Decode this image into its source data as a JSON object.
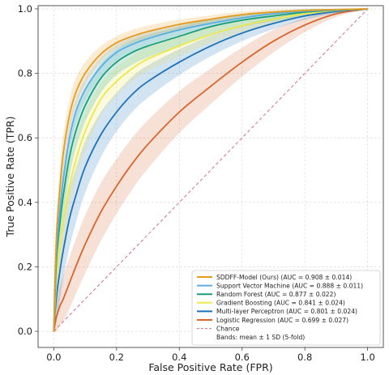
{
  "chart_data": {
    "type": "line",
    "xlabel": "False Positive Rate (FPR)",
    "ylabel": "True Positive Rate (TPR)",
    "xlim": [
      -0.05,
      1.05
    ],
    "ylim": [
      -0.05,
      1.01
    ],
    "xticks": [
      "0.0",
      "0.2",
      "0.4",
      "0.6",
      "0.8",
      "1.0"
    ],
    "yticks": [
      "0.0",
      "0.2",
      "0.4",
      "0.6",
      "0.8",
      "1.0"
    ],
    "grid": true,
    "legend_position": "bottom-right",
    "series": [
      {
        "name": "SDDFF-Model (Ours)",
        "auc_label": "(AUC = 0.908 ± 0.014)",
        "color": "#e69b1f",
        "x": [
          0,
          0.005,
          0.01,
          0.02,
          0.03,
          0.05,
          0.07,
          0.1,
          0.15,
          0.2,
          0.25,
          0.3,
          0.4,
          0.5,
          0.6,
          0.7,
          0.8,
          0.9,
          1.0
        ],
        "y": [
          0,
          0.2,
          0.32,
          0.45,
          0.55,
          0.67,
          0.74,
          0.8,
          0.86,
          0.895,
          0.915,
          0.93,
          0.952,
          0.968,
          0.982,
          0.99,
          0.995,
          0.998,
          1.0
        ],
        "band": [
          0.02,
          0.06,
          0.06,
          0.06,
          0.06,
          0.05,
          0.045,
          0.035,
          0.025,
          0.02,
          0.02,
          0.018,
          0.015,
          0.012,
          0.01,
          0.008,
          0.005,
          0.003,
          0
        ]
      },
      {
        "name": "Support Vector Machine",
        "auc_label": "(AUC = 0.888 ± 0.011)",
        "color": "#5aaee0",
        "x": [
          0,
          0.005,
          0.01,
          0.02,
          0.03,
          0.05,
          0.07,
          0.1,
          0.15,
          0.2,
          0.25,
          0.3,
          0.4,
          0.5,
          0.6,
          0.7,
          0.8,
          0.9,
          1.0
        ],
        "y": [
          0,
          0.16,
          0.27,
          0.38,
          0.47,
          0.6,
          0.68,
          0.75,
          0.82,
          0.865,
          0.89,
          0.908,
          0.935,
          0.955,
          0.972,
          0.985,
          0.993,
          0.997,
          1.0
        ],
        "band": [
          0.02,
          0.05,
          0.05,
          0.05,
          0.05,
          0.045,
          0.04,
          0.035,
          0.03,
          0.025,
          0.022,
          0.02,
          0.016,
          0.013,
          0.01,
          0.008,
          0.005,
          0.003,
          0
        ]
      },
      {
        "name": "Random Forest",
        "auc_label": "(AUC = 0.877 ± 0.022)",
        "color": "#1a9e77",
        "x": [
          0,
          0.005,
          0.01,
          0.02,
          0.03,
          0.05,
          0.07,
          0.1,
          0.15,
          0.2,
          0.25,
          0.3,
          0.4,
          0.5,
          0.6,
          0.7,
          0.8,
          0.9,
          1.0
        ],
        "y": [
          0,
          0.14,
          0.24,
          0.34,
          0.42,
          0.54,
          0.62,
          0.7,
          0.785,
          0.835,
          0.865,
          0.885,
          0.915,
          0.945,
          0.965,
          0.978,
          0.99,
          0.996,
          1.0
        ],
        "band": [
          0.02,
          0.06,
          0.07,
          0.07,
          0.07,
          0.06,
          0.055,
          0.05,
          0.045,
          0.04,
          0.038,
          0.035,
          0.03,
          0.025,
          0.02,
          0.015,
          0.01,
          0.005,
          0
        ]
      },
      {
        "name": "Gradient Boosting",
        "auc_label": "(AUC = 0.841 ± 0.024)",
        "color": "#ede84e",
        "x": [
          0,
          0.005,
          0.01,
          0.02,
          0.03,
          0.05,
          0.07,
          0.1,
          0.15,
          0.2,
          0.25,
          0.3,
          0.4,
          0.5,
          0.6,
          0.7,
          0.8,
          0.9,
          1.0
        ],
        "y": [
          0,
          0.1,
          0.18,
          0.27,
          0.34,
          0.45,
          0.53,
          0.62,
          0.72,
          0.775,
          0.815,
          0.845,
          0.885,
          0.92,
          0.948,
          0.968,
          0.985,
          0.995,
          1.0
        ],
        "band": [
          0.02,
          0.06,
          0.07,
          0.08,
          0.08,
          0.07,
          0.065,
          0.06,
          0.05,
          0.045,
          0.04,
          0.038,
          0.032,
          0.026,
          0.02,
          0.015,
          0.01,
          0.005,
          0
        ]
      },
      {
        "name": "Multi-layer Perceptron",
        "auc_label": "(AUC = 0.801 ± 0.024)",
        "color": "#1f72b8",
        "x": [
          0,
          0.005,
          0.01,
          0.02,
          0.03,
          0.05,
          0.07,
          0.1,
          0.15,
          0.2,
          0.25,
          0.3,
          0.4,
          0.5,
          0.6,
          0.7,
          0.8,
          0.9,
          1.0
        ],
        "y": [
          0,
          0.07,
          0.12,
          0.19,
          0.25,
          0.35,
          0.42,
          0.51,
          0.61,
          0.68,
          0.735,
          0.775,
          0.835,
          0.885,
          0.925,
          0.955,
          0.978,
          0.992,
          1.0
        ],
        "band": [
          0.02,
          0.06,
          0.08,
          0.09,
          0.09,
          0.09,
          0.085,
          0.08,
          0.07,
          0.06,
          0.055,
          0.05,
          0.04,
          0.032,
          0.025,
          0.018,
          0.012,
          0.006,
          0
        ]
      },
      {
        "name": "Logistic Regression",
        "auc_label": "(AUC = 0.699 ± 0.027)",
        "color": "#d9652b",
        "x": [
          0,
          0.005,
          0.01,
          0.02,
          0.03,
          0.05,
          0.07,
          0.1,
          0.15,
          0.2,
          0.25,
          0.3,
          0.4,
          0.5,
          0.6,
          0.7,
          0.8,
          0.9,
          1.0
        ],
        "y": [
          0,
          0.03,
          0.05,
          0.08,
          0.1,
          0.15,
          0.2,
          0.27,
          0.37,
          0.45,
          0.52,
          0.58,
          0.68,
          0.76,
          0.835,
          0.9,
          0.95,
          0.985,
          1.0
        ],
        "band": [
          0.02,
          0.04,
          0.05,
          0.06,
          0.07,
          0.08,
          0.085,
          0.09,
          0.09,
          0.085,
          0.08,
          0.075,
          0.065,
          0.055,
          0.045,
          0.035,
          0.022,
          0.01,
          0
        ]
      }
    ],
    "reference_line": {
      "name": "Chance",
      "color": "#d4708b",
      "x": [
        0,
        1
      ],
      "y": [
        0,
        1
      ]
    },
    "legend_note": "Bands: mean ± 1 SD (5-fold)"
  }
}
